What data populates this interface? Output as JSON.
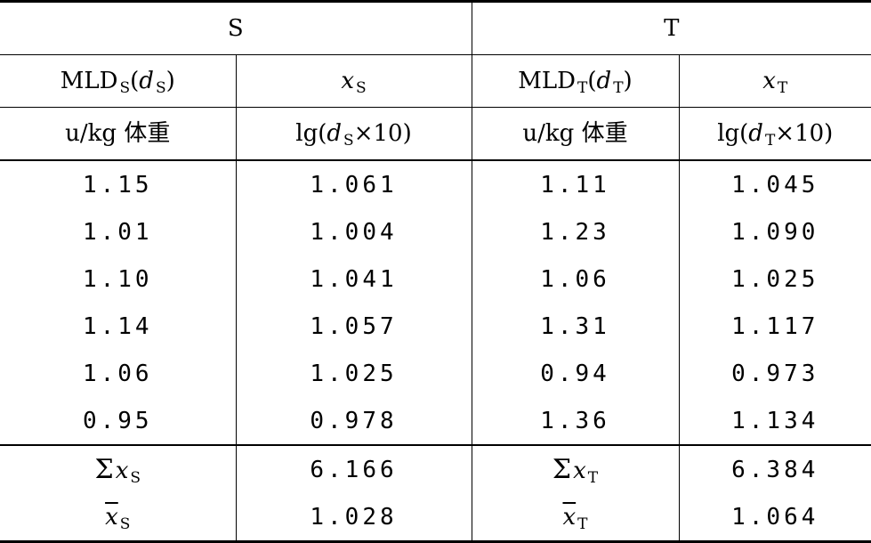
{
  "groups": {
    "s": "S",
    "t": "T"
  },
  "headers": {
    "s_mld_main": "MLD",
    "s_mld_sub": "S",
    "s_mld_paren_open": "(",
    "s_mld_var": "d",
    "s_mld_var_sub": "S",
    "s_mld_paren_close": ")",
    "s_x_var": "x",
    "s_x_sub": "S",
    "t_mld_main": "MLD",
    "t_mld_sub": "T",
    "t_mld_paren_open": "(",
    "t_mld_var": "d",
    "t_mld_var_sub": "T",
    "t_mld_paren_close": ")",
    "t_x_var": "x",
    "t_x_sub": "T"
  },
  "units": {
    "s_unit_prefix": "u/kg ",
    "s_unit_cjk": "体重",
    "s_lg_prefix": "lg(",
    "s_lg_var": "d",
    "s_lg_sub": "S",
    "s_lg_suffix": "×10)",
    "t_unit_prefix": "u/kg ",
    "t_unit_cjk": "体重",
    "t_lg_prefix": "lg(",
    "t_lg_var": "d",
    "t_lg_sub": "T",
    "t_lg_suffix": "×10)"
  },
  "rows": [
    {
      "s_mld": "1.15",
      "s_x": "1.061",
      "t_mld": "1.11",
      "t_x": "1.045"
    },
    {
      "s_mld": "1.01",
      "s_x": "1.004",
      "t_mld": "1.23",
      "t_x": "1.090"
    },
    {
      "s_mld": "1.10",
      "s_x": "1.041",
      "t_mld": "1.06",
      "t_x": "1.025"
    },
    {
      "s_mld": "1.14",
      "s_x": "1.057",
      "t_mld": "1.31",
      "t_x": "1.117"
    },
    {
      "s_mld": "1.06",
      "s_x": "1.025",
      "t_mld": "0.94",
      "t_x": "0.973"
    },
    {
      "s_mld": "0.95",
      "s_x": "0.978",
      "t_mld": "1.36",
      "t_x": "1.134"
    }
  ],
  "summary": {
    "sum_symbol": "Σ",
    "sum_s_var": "x",
    "sum_s_sub": "S",
    "sum_s_value": "6.166",
    "sum_t_var": "x",
    "sum_t_sub": "T",
    "sum_t_value": "6.384",
    "mean_s_var": "x",
    "mean_s_sub": "S",
    "mean_s_value": "1.028",
    "mean_t_var": "x",
    "mean_t_sub": "T",
    "mean_t_value": "1.064"
  }
}
